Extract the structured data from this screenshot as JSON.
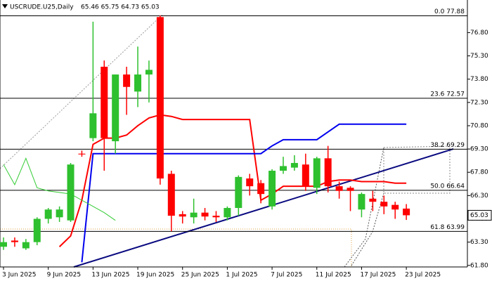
{
  "chart_data": {
    "type": "candlestick",
    "title": "USCRUDE.U25,Daily",
    "ohlc_text": "65.46 65.75 64.73 65.03",
    "categories": [
      "3 Jun 2025",
      null,
      null,
      null,
      "9 Jun 2025",
      null,
      null,
      null,
      "13 Jun 2025",
      null,
      null,
      null,
      "19 Jun 2025",
      null,
      null,
      null,
      "25 Jun 2025",
      null,
      null,
      null,
      "1 Jul 2025",
      null,
      null,
      null,
      "7 Jul 2025",
      null,
      null,
      null,
      "11 Jul 2025",
      null,
      null,
      null,
      "17 Jul 2025",
      null,
      null,
      null,
      "23 Jul 2025"
    ],
    "open": [
      63.0,
      63.4,
      62.9,
      63.3,
      64.8,
      64.9,
      64.7,
      69.0,
      70.0,
      74.6,
      69.8,
      74.1,
      73.0,
      74.1,
      77.8,
      67.7,
      65.1,
      64.9,
      65.2,
      65.0,
      64.9,
      65.5,
      67.4,
      67.1,
      65.6,
      67.9,
      68.1,
      68.3,
      66.8,
      68.7,
      66.9,
      66.8,
      65.4,
      66.1,
      65.9,
      65.7,
      65.46
    ],
    "high": [
      63.6,
      63.6,
      63.5,
      64.9,
      65.5,
      65.6,
      68.4,
      69.2,
      77.5,
      75.0,
      74.1,
      74.6,
      75.9,
      75.0,
      77.9,
      67.9,
      65.3,
      66.1,
      65.5,
      65.3,
      65.6,
      67.6,
      67.7,
      67.3,
      68.0,
      68.8,
      68.9,
      69.0,
      68.8,
      69.5,
      67.2,
      66.9,
      66.5,
      66.6,
      66.3,
      65.9,
      65.75
    ],
    "low": [
      62.8,
      63.0,
      62.8,
      63.1,
      64.5,
      64.6,
      64.6,
      68.8,
      69.8,
      67.9,
      69.0,
      71.5,
      72.0,
      72.3,
      67.0,
      64.0,
      64.5,
      64.5,
      64.7,
      64.6,
      64.7,
      65.0,
      66.3,
      65.8,
      65.4,
      67.7,
      67.9,
      66.6,
      66.4,
      66.5,
      66.1,
      65.3,
      64.9,
      65.3,
      65.1,
      64.8,
      64.73
    ],
    "close": [
      63.3,
      63.3,
      63.3,
      64.8,
      65.4,
      65.4,
      68.3,
      68.95,
      71.6,
      70.0,
      74.1,
      73.3,
      74.1,
      74.4,
      67.4,
      65.0,
      64.95,
      65.2,
      64.95,
      64.9,
      65.5,
      67.5,
      66.9,
      66.4,
      67.9,
      68.2,
      68.4,
      66.9,
      68.7,
      66.9,
      66.6,
      66.6,
      66.4,
      65.9,
      65.6,
      65.4,
      65.03
    ],
    "up_color": "#2ec02e",
    "down_color": "#ff0000",
    "lines": [
      {
        "color": "#ff0000",
        "width": 2,
        "values": [
          null,
          null,
          null,
          null,
          null,
          63.0,
          63.7,
          66.0,
          69.6,
          70.0,
          70.0,
          70.2,
          70.8,
          71.3,
          71.5,
          71.4,
          71.2,
          71.2,
          71.2,
          71.2,
          71.2,
          71.2,
          71.2,
          66.0,
          66.4,
          66.9,
          66.9,
          66.9,
          66.9,
          67.2,
          67.3,
          67.3,
          67.2,
          67.2,
          67.2,
          67.1,
          67.1
        ]
      },
      {
        "color": "#0000ee",
        "width": 2,
        "values": [
          null,
          null,
          null,
          null,
          null,
          null,
          null,
          62.0,
          69.0,
          69.0,
          69.0,
          69.0,
          69.0,
          69.0,
          69.0,
          69.0,
          69.0,
          69.0,
          69.0,
          69.0,
          69.0,
          69.0,
          69.0,
          69.0,
          69.5,
          69.9,
          69.9,
          69.9,
          69.9,
          70.4,
          70.9,
          70.9,
          70.9,
          70.9,
          70.9,
          70.9,
          70.9
        ]
      },
      {
        "color": "#33cc33",
        "width": 1,
        "values": [
          68.3,
          67.0,
          68.7,
          66.8,
          66.6,
          66.5,
          66.4,
          66.0,
          65.6,
          65.2,
          64.7,
          null,
          null,
          null,
          null,
          null,
          null,
          null,
          null,
          null,
          null,
          null,
          null,
          null,
          null,
          null,
          null,
          null,
          null,
          null,
          null,
          null,
          null,
          null,
          null,
          null,
          null
        ]
      }
    ],
    "fib_levels": [
      {
        "value": 77.88,
        "label": "0.0 77.88"
      },
      {
        "value": 72.57,
        "label": "23.6 72.57"
      },
      {
        "value": 69.29,
        "label": "38.2 69.29"
      },
      {
        "value": 66.64,
        "label": "50.0 66.64"
      },
      {
        "value": 63.99,
        "label": "61.8 63.99"
      }
    ],
    "last_price": 65.03,
    "ylim": [
      61.7,
      78.9
    ],
    "yticks": [
      {
        "value": 61.8,
        "label": "61.80"
      },
      {
        "value": 63.3,
        "label": "63.30"
      },
      {
        "value": 64.8,
        "label": "64.80"
      },
      {
        "value": 66.3,
        "label": "66.30"
      },
      {
        "value": 67.8,
        "label": "67.80"
      },
      {
        "value": 69.3,
        "label": "69.30"
      },
      {
        "value": 70.8,
        "label": "70.80"
      },
      {
        "value": 72.3,
        "label": "72.30"
      },
      {
        "value": 73.8,
        "label": "73.80"
      },
      {
        "value": 75.3,
        "label": "75.30"
      },
      {
        "value": 76.8,
        "label": "76.80"
      }
    ]
  }
}
